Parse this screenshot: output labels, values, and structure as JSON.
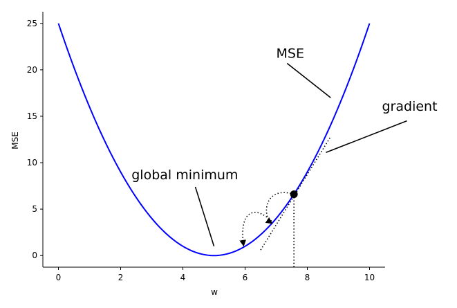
{
  "chart_data": {
    "type": "line",
    "xlabel": "w",
    "ylabel": "MSE",
    "xlim": [
      -0.5,
      10.5
    ],
    "ylim": [
      -1.25,
      26.25
    ],
    "xticks": [
      0,
      2,
      4,
      6,
      8,
      10
    ],
    "yticks": [
      0,
      5,
      10,
      15,
      20,
      25
    ],
    "grid": false,
    "series": [
      {
        "function": "(w - 5)^2",
        "domain": [
          0,
          10
        ],
        "color": "#0000ff"
      }
    ],
    "point": {
      "x": 7.57,
      "y": 6.6,
      "color": "#000000"
    },
    "tangent": {
      "x": [
        6.5,
        8.75
      ],
      "y": [
        0.6,
        12.8
      ]
    },
    "annotations": [
      {
        "text": "MSE",
        "x": 7.0,
        "y": 21.3,
        "arrow_from": [
          7.35,
          20.7
        ],
        "arrow_to": [
          8.75,
          17.0
        ]
      },
      {
        "text": "gradient",
        "x": 10.4,
        "y": 15.6,
        "arrow_from": [
          11.2,
          14.5
        ],
        "arrow_to": [
          8.6,
          11.1
        ]
      },
      {
        "text": "global minimum",
        "x": 2.35,
        "y": 8.2,
        "arrow_from": [
          4.4,
          7.4
        ],
        "arrow_to": [
          5.0,
          1.0
        ]
      }
    ]
  }
}
